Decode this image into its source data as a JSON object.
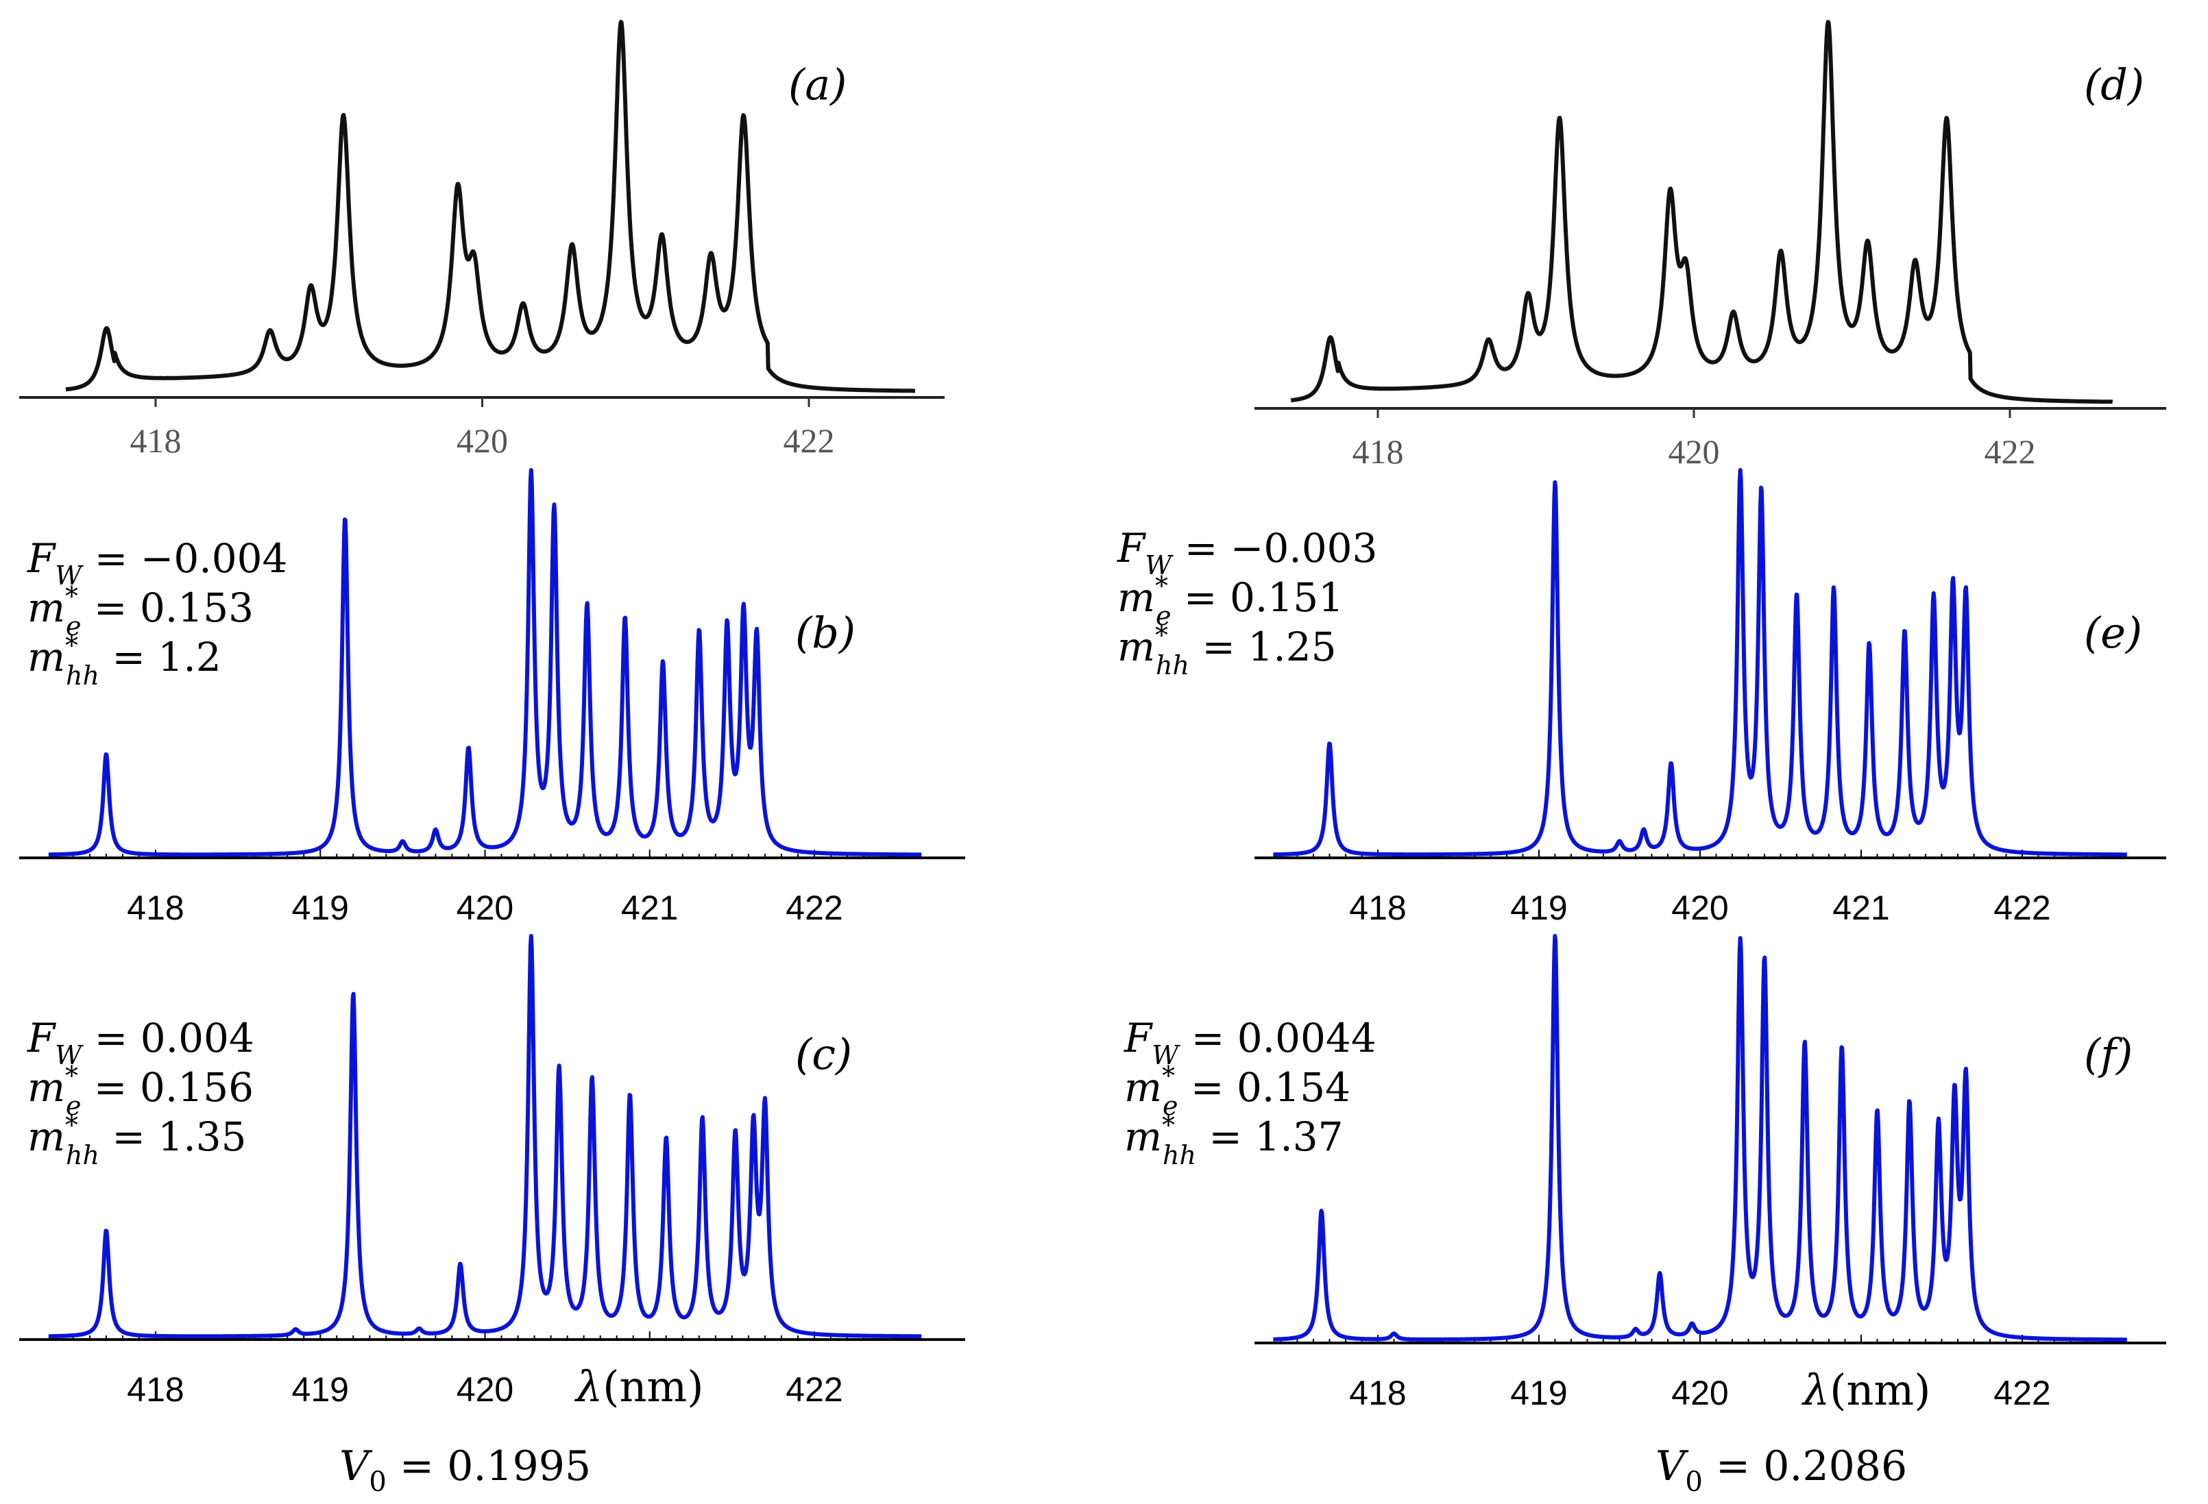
{
  "figure": {
    "column_labels": [
      {
        "symbol": "V",
        "sub": "0",
        "eq": " = 0.1995"
      },
      {
        "symbol": "V",
        "sub": "0",
        "eq": " = 0.2086"
      }
    ],
    "xlabel": {
      "symbol": "λ",
      "unit": "(nm)"
    }
  },
  "chart_data": [
    {
      "panel": "(a)",
      "type": "line",
      "style": "experiment",
      "color": "#111111",
      "xlim": [
        417.4,
        422.8
      ],
      "ticks": [
        "418",
        "420",
        "422"
      ],
      "tick_values": [
        418,
        420,
        422
      ],
      "params": null,
      "peaks": [
        [
          417.7,
          0.18
        ],
        [
          418.7,
          0.12
        ],
        [
          418.95,
          0.22
        ],
        [
          419.15,
          0.73
        ],
        [
          419.85,
          0.49
        ],
        [
          419.95,
          0.25
        ],
        [
          420.25,
          0.17
        ],
        [
          420.55,
          0.33
        ],
        [
          420.85,
          0.97
        ],
        [
          421.1,
          0.34
        ],
        [
          421.4,
          0.28
        ],
        [
          421.6,
          0.7
        ]
      ]
    },
    {
      "panel": "(b)",
      "type": "line",
      "style": "theory",
      "color": "#0a14d8",
      "xlim": [
        417.3,
        422.8
      ],
      "ticks": [
        "418",
        "419",
        "420",
        "421",
        "422"
      ],
      "tick_values": [
        418,
        419,
        420,
        421,
        422
      ],
      "params": [
        {
          "sym": "F",
          "sub": "W",
          "sup": "",
          "val": " = −0.004"
        },
        {
          "sym": "m",
          "sub": "e",
          "sup": "*",
          "val": " = 0.153"
        },
        {
          "sym": "m",
          "sub": "hh",
          "sup": "*",
          "val": " = 1.2"
        }
      ],
      "peaks": [
        [
          417.7,
          0.27
        ],
        [
          419.15,
          0.9
        ],
        [
          419.5,
          0.03
        ],
        [
          419.7,
          0.06
        ],
        [
          419.9,
          0.28
        ],
        [
          420.28,
          1.0
        ],
        [
          420.42,
          0.9
        ],
        [
          420.62,
          0.65
        ],
        [
          420.85,
          0.62
        ],
        [
          421.08,
          0.5
        ],
        [
          421.3,
          0.58
        ],
        [
          421.47,
          0.58
        ],
        [
          421.57,
          0.6
        ],
        [
          421.65,
          0.55
        ]
      ]
    },
    {
      "panel": "(c)",
      "type": "line",
      "style": "theory",
      "color": "#0a14d8",
      "xlim": [
        417.3,
        422.8
      ],
      "ticks": [
        "418",
        "419",
        "420",
        "422"
      ],
      "tick_values": [
        418,
        419,
        420,
        422
      ],
      "params": [
        {
          "sym": "F",
          "sub": "W",
          "sup": "",
          "val": " = 0.004"
        },
        {
          "sym": "m",
          "sub": "e",
          "sup": "*",
          "val": " = 0.156"
        },
        {
          "sym": "m",
          "sub": "hh",
          "sup": "*",
          "val": " = 1.35"
        }
      ],
      "peaks": [
        [
          417.7,
          0.27
        ],
        [
          418.85,
          0.015
        ],
        [
          419.2,
          0.87
        ],
        [
          419.6,
          0.015
        ],
        [
          419.85,
          0.18
        ],
        [
          420.28,
          1.0
        ],
        [
          420.45,
          0.66
        ],
        [
          420.65,
          0.64
        ],
        [
          420.88,
          0.6
        ],
        [
          421.1,
          0.49
        ],
        [
          421.32,
          0.54
        ],
        [
          421.52,
          0.49
        ],
        [
          421.63,
          0.49
        ],
        [
          421.7,
          0.55
        ]
      ]
    },
    {
      "panel": "(d)",
      "type": "line",
      "style": "experiment",
      "color": "#111111",
      "xlim": [
        417.4,
        422.8
      ],
      "ticks": [
        "418",
        "420",
        "422"
      ],
      "tick_values": [
        418,
        420,
        422
      ],
      "params": null,
      "peaks": [
        [
          417.7,
          0.18
        ],
        [
          418.7,
          0.12
        ],
        [
          418.95,
          0.22
        ],
        [
          419.15,
          0.73
        ],
        [
          419.85,
          0.49
        ],
        [
          419.95,
          0.25
        ],
        [
          420.25,
          0.17
        ],
        [
          420.55,
          0.33
        ],
        [
          420.85,
          0.97
        ],
        [
          421.1,
          0.34
        ],
        [
          421.4,
          0.28
        ],
        [
          421.6,
          0.7
        ]
      ]
    },
    {
      "panel": "(e)",
      "type": "line",
      "style": "theory",
      "color": "#0a14d8",
      "xlim": [
        417.3,
        422.8
      ],
      "ticks": [
        "418",
        "419",
        "420",
        "421",
        "422"
      ],
      "tick_values": [
        418,
        419,
        420,
        421,
        422
      ],
      "params": [
        {
          "sym": "F",
          "sub": "W",
          "sup": "",
          "val": " = −0.003"
        },
        {
          "sym": "m",
          "sub": "e",
          "sup": "*",
          "val": " = 0.151"
        },
        {
          "sym": "m",
          "sub": "hh",
          "sup": "*",
          "val": " = 1.25"
        }
      ],
      "peaks": [
        [
          417.7,
          0.3
        ],
        [
          419.1,
          1.0
        ],
        [
          419.5,
          0.03
        ],
        [
          419.65,
          0.06
        ],
        [
          419.82,
          0.24
        ],
        [
          420.25,
          1.0
        ],
        [
          420.38,
          0.95
        ],
        [
          420.6,
          0.68
        ],
        [
          420.83,
          0.7
        ],
        [
          421.05,
          0.55
        ],
        [
          421.27,
          0.58
        ],
        [
          421.45,
          0.66
        ],
        [
          421.57,
          0.67
        ],
        [
          421.65,
          0.66
        ]
      ]
    },
    {
      "panel": "(f)",
      "type": "line",
      "style": "theory",
      "color": "#0a14d8",
      "xlim": [
        417.3,
        422.8
      ],
      "ticks": [
        "418",
        "419",
        "420",
        "422"
      ],
      "tick_values": [
        418,
        419,
        420,
        422
      ],
      "params": [
        {
          "sym": "F",
          "sub": "W",
          "sup": "",
          "val": " = 0.0044"
        },
        {
          "sym": "m",
          "sub": "e",
          "sup": "*",
          "val": " = 0.154"
        },
        {
          "sym": "m",
          "sub": "hh",
          "sup": "*",
          "val": " = 1.37"
        }
      ],
      "peaks": [
        [
          417.65,
          0.32
        ],
        [
          418.1,
          0.015
        ],
        [
          419.1,
          1.0
        ],
        [
          419.6,
          0.02
        ],
        [
          419.75,
          0.16
        ],
        [
          419.95,
          0.03
        ],
        [
          420.25,
          0.97
        ],
        [
          420.4,
          0.92
        ],
        [
          420.65,
          0.72
        ],
        [
          420.88,
          0.71
        ],
        [
          421.1,
          0.55
        ],
        [
          421.3,
          0.57
        ],
        [
          421.48,
          0.5
        ],
        [
          421.58,
          0.55
        ],
        [
          421.65,
          0.61
        ]
      ]
    }
  ]
}
